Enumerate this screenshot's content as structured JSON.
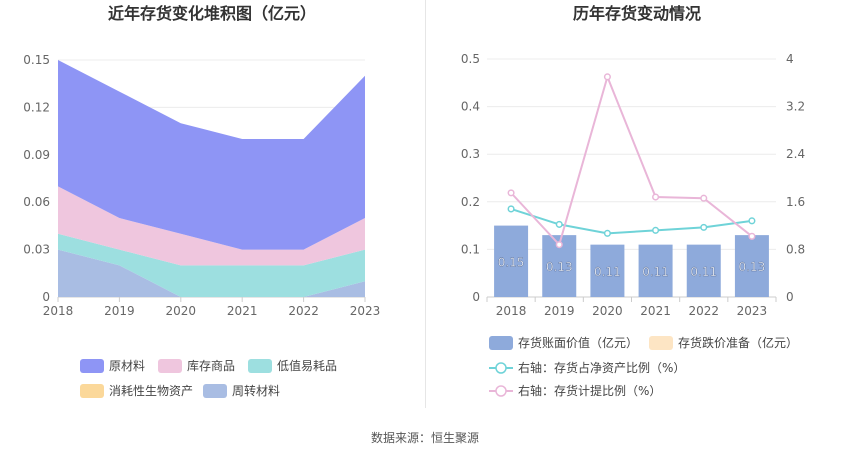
{
  "footer": {
    "source": "数据来源：恒生聚源"
  },
  "colors": {
    "raw_materials": "#8e95f5",
    "inventory_goods": "#efc6de",
    "low_value": "#9ddfe0",
    "bio_assets": "#fbd89a",
    "turnover": "#a9bde3",
    "bar": "#8eaadb",
    "bar_legend": "#8eaadb",
    "impairment": "#fde5c4",
    "ratio_line": "#6fd3d8",
    "provision_line": "#e9b6d8"
  },
  "chart_data": [
    {
      "type": "area",
      "stacked": true,
      "title": "近年存货变化堆积图（亿元）",
      "x": [
        "2018",
        "2019",
        "2020",
        "2021",
        "2022",
        "2023"
      ],
      "ylim": [
        0,
        0.15
      ],
      "yticks": [
        "0",
        "0.03",
        "0.06",
        "0.09",
        "0.12",
        "0.15"
      ],
      "grid": true,
      "legend_position": "bottom",
      "series": [
        {
          "name": "周转材料",
          "color_key": "turnover",
          "values": [
            0.03,
            0.02,
            0,
            0,
            0,
            0.01
          ]
        },
        {
          "name": "消耗性生物资产",
          "color_key": "bio_assets",
          "values": [
            0,
            0,
            0,
            0,
            0,
            0
          ]
        },
        {
          "name": "低值易耗品",
          "color_key": "low_value",
          "values": [
            0.01,
            0.01,
            0.02,
            0.02,
            0.02,
            0.02
          ]
        },
        {
          "name": "库存商品",
          "color_key": "inventory_goods",
          "values": [
            0.03,
            0.02,
            0.02,
            0.01,
            0.01,
            0.02
          ]
        },
        {
          "name": "原材料",
          "color_key": "raw_materials",
          "values": [
            0.08,
            0.08,
            0.07,
            0.07,
            0.07,
            0.09
          ]
        }
      ],
      "legend_order": [
        "原材料",
        "库存商品",
        "低值易耗品",
        "消耗性生物资产",
        "周转材料"
      ]
    },
    {
      "type": "bar",
      "title": "历年存货变动情况",
      "x": [
        "2018",
        "2019",
        "2020",
        "2021",
        "2022",
        "2023"
      ],
      "ylim_left": [
        0,
        0.5
      ],
      "yticks_left": [
        "0",
        "0.1",
        "0.2",
        "0.3",
        "0.4",
        "0.5"
      ],
      "ylim_right": [
        0,
        4
      ],
      "yticks_right": [
        "0",
        "0.8",
        "1.6",
        "2.4",
        "3.2",
        "4"
      ],
      "grid": true,
      "legend_position": "bottom",
      "bars": {
        "name": "存货账面价值（亿元）",
        "values": [
          0.15,
          0.13,
          0.11,
          0.11,
          0.11,
          0.13
        ],
        "labels": [
          "0.15",
          "0.13",
          "0.11",
          "0.11",
          "0.11",
          "0.13"
        ]
      },
      "impairment": {
        "name": "存货跌价准备（亿元）",
        "values": [
          0,
          0,
          0,
          0,
          0,
          0
        ]
      },
      "lines": [
        {
          "name": "右轴：存货占净资产比例（%）",
          "color_key": "ratio_line",
          "values": [
            1.48,
            1.22,
            1.07,
            1.12,
            1.17,
            1.28
          ]
        },
        {
          "name": "右轴：存货计提比例（%）",
          "color_key": "provision_line",
          "values": [
            1.75,
            0.88,
            3.7,
            1.68,
            1.66,
            1.02
          ]
        }
      ]
    }
  ]
}
